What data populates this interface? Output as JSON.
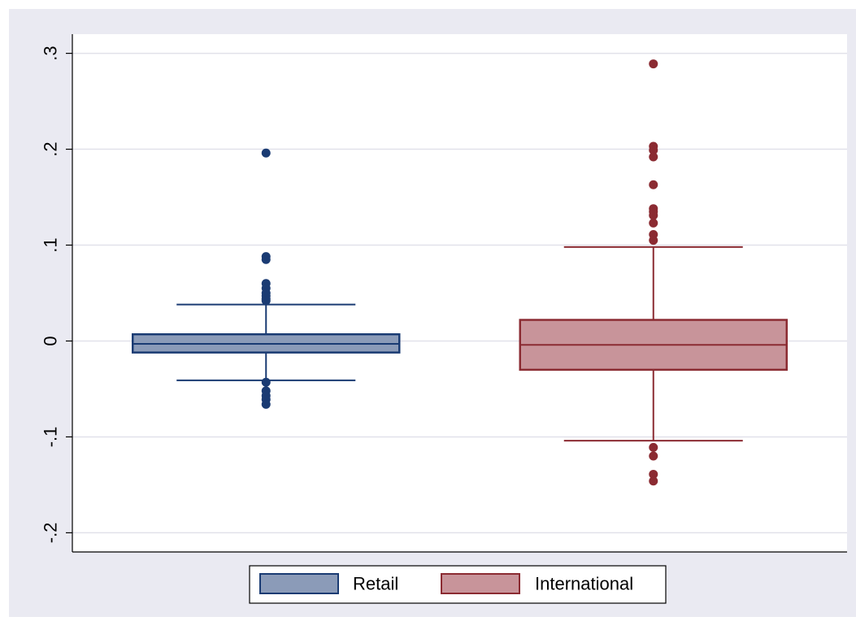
{
  "chart_data": {
    "type": "box",
    "title": "",
    "xlabel": "",
    "ylabel": "",
    "ylim": [
      -0.22,
      0.32
    ],
    "yticks": [
      -0.2,
      -0.1,
      0,
      0.1,
      0.2,
      0.3
    ],
    "ytick_labels": [
      "-.2",
      "-.1",
      "0",
      ".1",
      ".2",
      ".3"
    ],
    "grid": true,
    "legend_position": "bottom",
    "series": [
      {
        "name": "Retail",
        "color": "#1a3b73",
        "fill": "#8b9bb8",
        "whisker_low": -0.041,
        "q1": -0.012,
        "median": -0.003,
        "q3": 0.007,
        "whisker_high": 0.038,
        "outliers": [
          0.196,
          0.088,
          0.085,
          0.06,
          0.055,
          0.05,
          0.047,
          0.044,
          0.042,
          -0.043,
          -0.052,
          -0.057,
          -0.061,
          -0.066
        ]
      },
      {
        "name": "International",
        "color": "#8b2b32",
        "fill": "#c8949a",
        "whisker_low": -0.104,
        "q1": -0.03,
        "median": -0.004,
        "q3": 0.022,
        "whisker_high": 0.098,
        "outliers": [
          0.289,
          0.203,
          0.199,
          0.192,
          0.163,
          0.138,
          0.135,
          0.131,
          0.123,
          0.111,
          0.105,
          -0.111,
          -0.12,
          -0.139,
          -0.146
        ]
      }
    ]
  }
}
